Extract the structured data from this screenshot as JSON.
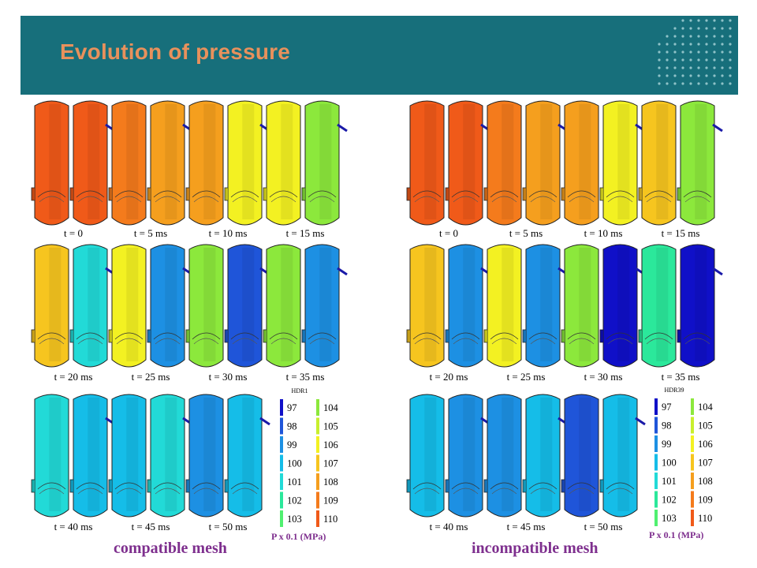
{
  "slide": {
    "title": "Evolution of pressure"
  },
  "legend": {
    "unit": "P x 0.1 (MPa)",
    "values": [
      "97",
      "98",
      "99",
      "100",
      "101",
      "102",
      "103",
      "104",
      "105",
      "106",
      "107",
      "108",
      "109",
      "110"
    ],
    "colors": [
      "#1010c8",
      "#1f55d9",
      "#1d90e3",
      "#15bde8",
      "#22dad7",
      "#2be89b",
      "#50f070",
      "#8ce83c",
      "#c8ef2e",
      "#f3f122",
      "#f6c51f",
      "#f59f1e",
      "#f47b1c",
      "#f05a19"
    ]
  },
  "panels": [
    {
      "id": "left",
      "file_label": "HDR1",
      "mesh_label": "compatible mesh",
      "rows": [
        {
          "labels": [
            "t = 0",
            "t = 5 ms",
            "t = 10 ms",
            "t = 15 ms"
          ],
          "levels": [
            [
              "110",
              "110"
            ],
            [
              "109",
              "108"
            ],
            [
              "108",
              "106"
            ],
            [
              "106",
              "104"
            ]
          ]
        },
        {
          "labels": [
            "t = 20 ms",
            "t = 25 ms",
            "t = 30 ms",
            "t = 35 ms"
          ],
          "levels": [
            [
              "107",
              "101"
            ],
            [
              "106",
              "99"
            ],
            [
              "104",
              "98"
            ],
            [
              "104",
              "99"
            ]
          ]
        },
        {
          "labels": [
            "t = 40 ms",
            "t = 45 ms",
            "t = 50 ms"
          ],
          "levels": [
            [
              "101",
              "100"
            ],
            [
              "100",
              "101"
            ],
            [
              "99",
              "100"
            ]
          ]
        }
      ]
    },
    {
      "id": "right",
      "file_label": "HDR39",
      "mesh_label": "incompatible mesh",
      "rows": [
        {
          "labels": [
            "t = 0",
            "t = 5 ms",
            "t = 10 ms",
            "t = 15 ms"
          ],
          "levels": [
            [
              "110",
              "110"
            ],
            [
              "109",
              "108"
            ],
            [
              "108",
              "106"
            ],
            [
              "107",
              "104"
            ]
          ]
        },
        {
          "labels": [
            "t = 20 ms",
            "t = 25 ms",
            "t = 30 ms",
            "t = 35 ms"
          ],
          "levels": [
            [
              "107",
              "99"
            ],
            [
              "106",
              "99"
            ],
            [
              "104",
              "97"
            ],
            [
              "102",
              "97"
            ]
          ]
        },
        {
          "labels": [
            "t = 40 ms",
            "t = 45 ms",
            "t = 50 ms"
          ],
          "levels": [
            [
              "100",
              "99"
            ],
            [
              "99",
              "100"
            ],
            [
              "98",
              "100"
            ]
          ]
        }
      ]
    }
  ]
}
